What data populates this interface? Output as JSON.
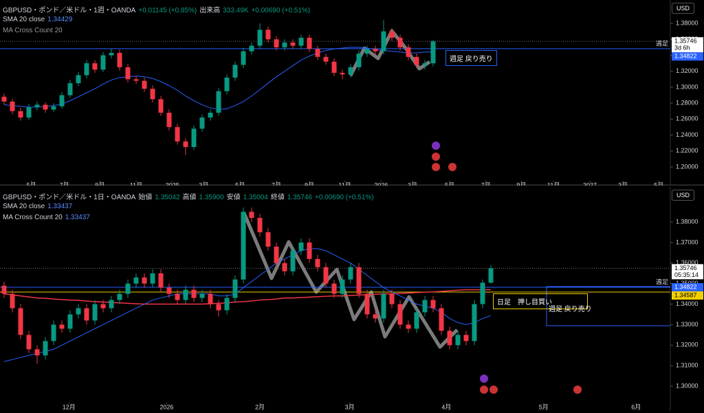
{
  "chart_data": [
    {
      "type": "candlestick",
      "title": "GBPUSD・ポンド／米ドル・1週・OANDA",
      "change": "+0.01145 (+0.85%)",
      "volume_label": "出来高",
      "volume": "333.49K",
      "change2": "+0.00690 (+0.51%)",
      "sma_label": "SMA 20 close",
      "sma_value": "1.34429",
      "indicator2": "MA Cross Count 20",
      "currency": "USD",
      "countdown": "3d 6h",
      "up_color": "#089981",
      "down_color": "#f23645",
      "sma_color": "#2962ff",
      "xlim": [
        -0.5,
        80.75
      ],
      "ylim": [
        1.1836,
        1.4093
      ],
      "xticks": [
        {
          "value": 3.3,
          "label": "5月"
        },
        {
          "value": 7.3,
          "label": "7月"
        },
        {
          "value": 11.6,
          "label": "9月"
        },
        {
          "value": 16.0,
          "label": "11月"
        },
        {
          "value": 20.4,
          "label": "2025"
        },
        {
          "value": 24.2,
          "label": "3月"
        },
        {
          "value": 28.6,
          "label": "5月"
        },
        {
          "value": 33.0,
          "label": "7月"
        },
        {
          "value": 37.0,
          "label": "9月"
        },
        {
          "value": 41.3,
          "label": "11月"
        },
        {
          "value": 45.7,
          "label": "2026"
        },
        {
          "value": 49.5,
          "label": "3月"
        },
        {
          "value": 54.0,
          "label": "5月"
        },
        {
          "value": 58.4,
          "label": "7月"
        },
        {
          "value": 62.7,
          "label": "9月"
        },
        {
          "value": 66.6,
          "label": "11月"
        },
        {
          "value": 71.0,
          "label": "2027"
        },
        {
          "value": 75.0,
          "label": "3月"
        },
        {
          "value": 79.35,
          "label": "5月"
        }
      ],
      "yticks": [
        {
          "value": 1.2,
          "label": "1.20000"
        },
        {
          "value": 1.22,
          "label": "1.22000"
        },
        {
          "value": 1.24,
          "label": "1.24000"
        },
        {
          "value": 1.26,
          "label": "1.26000"
        },
        {
          "value": 1.28,
          "label": "1.28000"
        },
        {
          "value": 1.3,
          "label": "1.30000"
        },
        {
          "value": 1.32,
          "label": "1.32000"
        },
        {
          "value": 1.34,
          "label": "1.34000"
        },
        {
          "value": 1.36,
          "label": "1.36000"
        },
        {
          "value": 1.38,
          "label": "1.38000"
        }
      ],
      "ohlc": [
        [
          1.288,
          1.292,
          1.278,
          1.282
        ],
        [
          1.282,
          1.285,
          1.266,
          1.27
        ],
        [
          1.27,
          1.274,
          1.258,
          1.262
        ],
        [
          1.262,
          1.279,
          1.259,
          1.275
        ],
        [
          1.275,
          1.282,
          1.271,
          1.278
        ],
        [
          1.278,
          1.281,
          1.268,
          1.272
        ],
        [
          1.272,
          1.28,
          1.269,
          1.276
        ],
        [
          1.276,
          1.294,
          1.273,
          1.29
        ],
        [
          1.29,
          1.309,
          1.287,
          1.305
        ],
        [
          1.305,
          1.319,
          1.301,
          1.315
        ],
        [
          1.315,
          1.334,
          1.311,
          1.33
        ],
        [
          1.33,
          1.334,
          1.318,
          1.322
        ],
        [
          1.322,
          1.344,
          1.319,
          1.34
        ],
        [
          1.34,
          1.348,
          1.336,
          1.343
        ],
        [
          1.343,
          1.347,
          1.321,
          1.325
        ],
        [
          1.325,
          1.329,
          1.306,
          1.31
        ],
        [
          1.31,
          1.314,
          1.304,
          1.308
        ],
        [
          1.308,
          1.312,
          1.294,
          1.298
        ],
        [
          1.298,
          1.302,
          1.281,
          1.285
        ],
        [
          1.285,
          1.289,
          1.264,
          1.268
        ],
        [
          1.268,
          1.272,
          1.246,
          1.25
        ],
        [
          1.25,
          1.254,
          1.228,
          1.232
        ],
        [
          1.232,
          1.236,
          1.215,
          1.225
        ],
        [
          1.225,
          1.252,
          1.221,
          1.248
        ],
        [
          1.248,
          1.266,
          1.244,
          1.262
        ],
        [
          1.262,
          1.272,
          1.258,
          1.268
        ],
        [
          1.268,
          1.299,
          1.264,
          1.295
        ],
        [
          1.295,
          1.316,
          1.291,
          1.312
        ],
        [
          1.312,
          1.332,
          1.308,
          1.328
        ],
        [
          1.328,
          1.349,
          1.324,
          1.345
        ],
        [
          1.345,
          1.356,
          1.341,
          1.352
        ],
        [
          1.352,
          1.38,
          1.348,
          1.372
        ],
        [
          1.372,
          1.376,
          1.356,
          1.36
        ],
        [
          1.36,
          1.364,
          1.346,
          1.35
        ],
        [
          1.35,
          1.36,
          1.346,
          1.356
        ],
        [
          1.356,
          1.36,
          1.348,
          1.352
        ],
        [
          1.352,
          1.366,
          1.348,
          1.362
        ],
        [
          1.362,
          1.366,
          1.344,
          1.348
        ],
        [
          1.348,
          1.352,
          1.334,
          1.338
        ],
        [
          1.338,
          1.342,
          1.328,
          1.332
        ],
        [
          1.332,
          1.336,
          1.314,
          1.318
        ],
        [
          1.318,
          1.322,
          1.31,
          1.316
        ],
        [
          1.316,
          1.329,
          1.312,
          1.325
        ],
        [
          1.325,
          1.346,
          1.321,
          1.342
        ],
        [
          1.342,
          1.352,
          1.338,
          1.348
        ],
        [
          1.348,
          1.352,
          1.341,
          1.345
        ],
        [
          1.345,
          1.384,
          1.341,
          1.37
        ],
        [
          1.37,
          1.374,
          1.358,
          1.362
        ],
        [
          1.362,
          1.366,
          1.346,
          1.35
        ],
        [
          1.35,
          1.354,
          1.334,
          1.338
        ],
        [
          1.338,
          1.342,
          1.324,
          1.328
        ],
        [
          1.328,
          1.334,
          1.322,
          1.33
        ],
        [
          1.33,
          1.359,
          1.326,
          1.35746
        ]
      ],
      "sma": [
        1.278,
        1.277,
        1.276,
        1.275,
        1.275,
        1.276,
        1.277,
        1.279,
        1.283,
        1.288,
        1.293,
        1.298,
        1.304,
        1.309,
        1.312,
        1.313,
        1.314,
        1.313,
        1.311,
        1.307,
        1.302,
        1.296,
        1.289,
        1.283,
        1.278,
        1.274,
        1.272,
        1.273,
        1.277,
        1.282,
        1.289,
        1.297,
        1.305,
        1.313,
        1.32,
        1.327,
        1.334,
        1.339,
        1.343,
        1.346,
        1.348,
        1.349,
        1.35,
        1.35,
        1.349,
        1.347,
        1.346,
        1.345,
        1.344,
        1.343,
        1.343,
        1.344,
        1.3443
      ],
      "hlines": [
        {
          "label": "週足",
          "value": 1.34822,
          "color": "#2962ff"
        }
      ],
      "price_tags": [
        {
          "value": 1.35746,
          "color": "#ffffff"
        },
        {
          "value": 1.34822,
          "color": "#2962ff"
        }
      ],
      "annotations": [
        {
          "text": "週足 戻り売り"
        }
      ]
    },
    {
      "type": "candlestick",
      "title": "GBPUSD・ポンド／米ドル・1日・OANDA",
      "ohlc_header": [
        "始値",
        "1.35042",
        "高値",
        "1.35900",
        "安値",
        "1.35004",
        "終値",
        "1.35746"
      ],
      "change2": "+0.00690 (+0.51%)",
      "sma_label": "SMA 20 close",
      "sma_value": "1.33437",
      "indicator2": "MA Cross Count 20",
      "indicator2_value": "1.33437",
      "currency": "USD",
      "countdown": "05:35:14",
      "up_color": "#089981",
      "down_color": "#f23645",
      "sma_color": "#2962ff",
      "line2_color": "#f23645",
      "xlim": [
        -0.5,
        80.75
      ],
      "ylim": [
        1.2923,
        1.3971
      ],
      "xticks": [
        {
          "value": 7.86,
          "label": "12月"
        },
        {
          "value": 19.7,
          "label": "2026"
        },
        {
          "value": 31.0,
          "label": "2月"
        },
        {
          "value": 41.9,
          "label": "3月"
        },
        {
          "value": 53.6,
          "label": "4月"
        },
        {
          "value": 65.4,
          "label": "5月"
        },
        {
          "value": 76.6,
          "label": "6月"
        }
      ],
      "yticks": [
        {
          "value": 1.3,
          "label": "1.30000"
        },
        {
          "value": 1.31,
          "label": "1.31000"
        },
        {
          "value": 1.32,
          "label": "1.32000"
        },
        {
          "value": 1.33,
          "label": "1.33000"
        },
        {
          "value": 1.34,
          "label": "1.34000"
        },
        {
          "value": 1.35,
          "label": "1.35000"
        },
        {
          "value": 1.36,
          "label": "1.36000"
        },
        {
          "value": 1.37,
          "label": "1.37000"
        },
        {
          "value": 1.38,
          "label": "1.38000"
        }
      ],
      "ohlc": [
        [
          1.349,
          1.351,
          1.343,
          1.345
        ],
        [
          1.345,
          1.347,
          1.336,
          1.338
        ],
        [
          1.338,
          1.34,
          1.323,
          1.325
        ],
        [
          1.325,
          1.327,
          1.316,
          1.318
        ],
        [
          1.318,
          1.32,
          1.311,
          1.315
        ],
        [
          1.315,
          1.324,
          1.313,
          1.322
        ],
        [
          1.322,
          1.332,
          1.32,
          1.33
        ],
        [
          1.33,
          1.332,
          1.326,
          1.328
        ],
        [
          1.328,
          1.337,
          1.326,
          1.335
        ],
        [
          1.335,
          1.34,
          1.333,
          1.338
        ],
        [
          1.338,
          1.34,
          1.33,
          1.332
        ],
        [
          1.332,
          1.342,
          1.33,
          1.34
        ],
        [
          1.34,
          1.342,
          1.336,
          1.338
        ],
        [
          1.338,
          1.344,
          1.336,
          1.342
        ],
        [
          1.342,
          1.347,
          1.34,
          1.345
        ],
        [
          1.345,
          1.352,
          1.343,
          1.35
        ],
        [
          1.35,
          1.355,
          1.348,
          1.353
        ],
        [
          1.353,
          1.355,
          1.348,
          1.35
        ],
        [
          1.35,
          1.357,
          1.348,
          1.355
        ],
        [
          1.355,
          1.357,
          1.346,
          1.348
        ],
        [
          1.348,
          1.35,
          1.343,
          1.345
        ],
        [
          1.345,
          1.347,
          1.34,
          1.342
        ],
        [
          1.342,
          1.349,
          1.34,
          1.347
        ],
        [
          1.347,
          1.349,
          1.341,
          1.343
        ],
        [
          1.343,
          1.347,
          1.341,
          1.345
        ],
        [
          1.345,
          1.347,
          1.338,
          1.34
        ],
        [
          1.34,
          1.342,
          1.334,
          1.337
        ],
        [
          1.337,
          1.345,
          1.335,
          1.343
        ],
        [
          1.343,
          1.354,
          1.341,
          1.352
        ],
        [
          1.352,
          1.387,
          1.35,
          1.385
        ],
        [
          1.385,
          1.387,
          1.38,
          1.382
        ],
        [
          1.382,
          1.384,
          1.373,
          1.375
        ],
        [
          1.375,
          1.377,
          1.366,
          1.368
        ],
        [
          1.368,
          1.37,
          1.358,
          1.36
        ],
        [
          1.36,
          1.362,
          1.354,
          1.356
        ],
        [
          1.356,
          1.368,
          1.354,
          1.366
        ],
        [
          1.366,
          1.372,
          1.364,
          1.37
        ],
        [
          1.37,
          1.372,
          1.36,
          1.362
        ],
        [
          1.362,
          1.364,
          1.356,
          1.358
        ],
        [
          1.358,
          1.36,
          1.348,
          1.35
        ],
        [
          1.35,
          1.352,
          1.343,
          1.345
        ],
        [
          1.345,
          1.354,
          1.343,
          1.352
        ],
        [
          1.352,
          1.36,
          1.35,
          1.358
        ],
        [
          1.358,
          1.36,
          1.343,
          1.345
        ],
        [
          1.345,
          1.347,
          1.333,
          1.335
        ],
        [
          1.335,
          1.337,
          1.331,
          1.333
        ],
        [
          1.333,
          1.347,
          1.331,
          1.345
        ],
        [
          1.345,
          1.347,
          1.338,
          1.34
        ],
        [
          1.34,
          1.342,
          1.328,
          1.33
        ],
        [
          1.33,
          1.332,
          1.326,
          1.328
        ],
        [
          1.328,
          1.338,
          1.326,
          1.336
        ],
        [
          1.336,
          1.344,
          1.334,
          1.342
        ],
        [
          1.342,
          1.344,
          1.336,
          1.338
        ],
        [
          1.338,
          1.34,
          1.325,
          1.327
        ],
        [
          1.327,
          1.329,
          1.318,
          1.32
        ],
        [
          1.32,
          1.327,
          1.318,
          1.325
        ],
        [
          1.325,
          1.327,
          1.32,
          1.322
        ],
        [
          1.322,
          1.342,
          1.32,
          1.34
        ],
        [
          1.34,
          1.352,
          1.338,
          1.35042
        ],
        [
          1.35042,
          1.359,
          1.35004,
          1.35746
        ]
      ],
      "sma": [
        1.312,
        1.313,
        1.314,
        1.315,
        1.316,
        1.317,
        1.318,
        1.32,
        1.322,
        1.324,
        1.326,
        1.328,
        1.33,
        1.332,
        1.334,
        1.336,
        1.338,
        1.34,
        1.342,
        1.343,
        1.344,
        1.345,
        1.345,
        1.345,
        1.345,
        1.345,
        1.344,
        1.344,
        1.345,
        1.348,
        1.351,
        1.354,
        1.357,
        1.36,
        1.362,
        1.364,
        1.366,
        1.367,
        1.367,
        1.366,
        1.364,
        1.362,
        1.36,
        1.357,
        1.354,
        1.351,
        1.348,
        1.346,
        1.344,
        1.342,
        1.34,
        1.339,
        1.338,
        1.336,
        1.333,
        1.331,
        1.33,
        1.331,
        1.333,
        1.3344
      ],
      "line2": [
        1.345,
        1.3445,
        1.344,
        1.3435,
        1.343,
        1.3428,
        1.3425,
        1.3422,
        1.342,
        1.3418,
        1.3415,
        1.3412,
        1.341,
        1.3408,
        1.3406,
        1.3404,
        1.3402,
        1.34,
        1.34,
        1.34,
        1.34,
        1.34,
        1.34,
        1.34,
        1.34,
        1.3402,
        1.3404,
        1.3406,
        1.341,
        1.3412,
        1.3415,
        1.342,
        1.3422,
        1.3425,
        1.343,
        1.343,
        1.3432,
        1.3434,
        1.3436,
        1.3438,
        1.344,
        1.344,
        1.3442,
        1.3444,
        1.3446,
        1.3448,
        1.345,
        1.345,
        1.3452,
        1.3454,
        1.3456,
        1.3458,
        1.346,
        1.3462,
        1.3465,
        1.3468,
        1.347,
        1.347,
        1.347,
        1.347
      ],
      "hlines": [
        {
          "label": "週足",
          "value": 1.34822,
          "color": "#2962ff"
        },
        {
          "value": 1.34587,
          "color": "#f0d000"
        }
      ],
      "price_tags": [
        {
          "value": 1.35746,
          "color": "#ffffff"
        },
        {
          "value": 1.34822,
          "color": "#2962ff"
        },
        {
          "value": 1.34587,
          "color": "#f0d000"
        }
      ],
      "annotations": [
        {
          "text": "日足　押し目買い"
        },
        {
          "text": "週足 戻り売り"
        }
      ]
    }
  ]
}
